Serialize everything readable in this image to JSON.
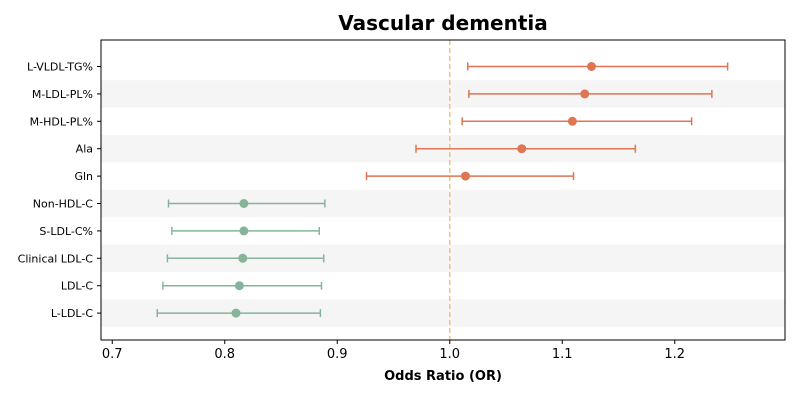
{
  "chart_data": {
    "type": "forest",
    "title": "Vascular dementia",
    "xlabel": "Odds Ratio (OR)",
    "ylabel": "",
    "xlim": [
      0.69,
      1.298
    ],
    "xticks": [
      0.7,
      0.8,
      0.9,
      1.0,
      1.1,
      1.2
    ],
    "xtick_labels": [
      "0.7",
      "0.8",
      "0.9",
      "1.0",
      "1.1",
      "1.2"
    ],
    "reference_line": 1.0,
    "grid": false,
    "categories": [
      "L-VLDL-TG%",
      "M-LDL-PL%",
      "M-HDL-PL%",
      "Ala",
      "Gln",
      "Non-HDL-C",
      "S-LDL-C%",
      "Clinical LDL-C",
      "LDL-C",
      "L-LDL-C"
    ],
    "or": [
      1.126,
      1.12,
      1.109,
      1.064,
      1.014,
      0.817,
      0.817,
      0.816,
      0.813,
      0.81
    ],
    "ci_low": [
      1.016,
      1.017,
      1.011,
      0.97,
      0.926,
      0.75,
      0.753,
      0.749,
      0.745,
      0.74
    ],
    "ci_high": [
      1.247,
      1.233,
      1.215,
      1.165,
      1.11,
      0.889,
      0.884,
      0.888,
      0.886,
      0.885
    ],
    "colors": {
      "positive": "#de7555",
      "negative": "#86b49a",
      "reference": "#f2c47c",
      "band": "#f5f5f5"
    }
  }
}
